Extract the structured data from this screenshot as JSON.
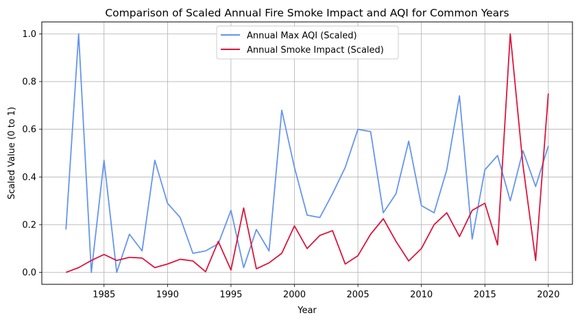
{
  "chart_data": {
    "type": "line",
    "title": "Comparison of Scaled Annual Fire Smoke Impact and AQI for Common Years",
    "xlabel": "Year",
    "ylabel": "Scaled Value (0 to 1)",
    "xlim": [
      1980.1,
      2021.9
    ],
    "ylim": [
      -0.05,
      1.05
    ],
    "xticks": [
      1985,
      1990,
      1995,
      2000,
      2005,
      2010,
      2015,
      2020
    ],
    "yticks": [
      0.0,
      0.2,
      0.4,
      0.6,
      0.8,
      1.0
    ],
    "xtick_labels": [
      "1985",
      "1990",
      "1995",
      "2000",
      "2005",
      "2010",
      "2015",
      "2020"
    ],
    "ytick_labels": [
      "0.0",
      "0.2",
      "0.4",
      "0.6",
      "0.8",
      "1.0"
    ],
    "grid": true,
    "legend_position": "top-center",
    "x": [
      1982,
      1983,
      1984,
      1985,
      1986,
      1987,
      1988,
      1989,
      1990,
      1991,
      1992,
      1993,
      1994,
      1995,
      1996,
      1997,
      1998,
      1999,
      2000,
      2001,
      2002,
      2003,
      2004,
      2005,
      2006,
      2007,
      2008,
      2009,
      2010,
      2011,
      2012,
      2013,
      2014,
      2015,
      2016,
      2017,
      2018,
      2019,
      2020
    ],
    "series": [
      {
        "name": "Annual Max AQI (Scaled)",
        "color": "#6495ED",
        "values": [
          0.18,
          1.0,
          0.0,
          0.47,
          0.0,
          0.16,
          0.09,
          0.47,
          0.29,
          0.23,
          0.08,
          0.09,
          0.12,
          0.26,
          0.02,
          0.18,
          0.09,
          0.68,
          0.44,
          0.24,
          0.23,
          0.33,
          0.44,
          0.6,
          0.59,
          0.25,
          0.33,
          0.55,
          0.28,
          0.25,
          0.43,
          0.74,
          0.14,
          0.43,
          0.49,
          0.3,
          0.51,
          0.36,
          0.53
        ]
      },
      {
        "name": "Annual Smoke Impact (Scaled)",
        "color": "#DC143C",
        "values": [
          0.0,
          0.02,
          0.05,
          0.075,
          0.05,
          0.063,
          0.06,
          0.02,
          0.035,
          0.055,
          0.048,
          0.003,
          0.13,
          0.01,
          0.27,
          0.015,
          0.04,
          0.08,
          0.195,
          0.1,
          0.155,
          0.175,
          0.035,
          0.07,
          0.16,
          0.225,
          0.13,
          0.048,
          0.1,
          0.2,
          0.25,
          0.15,
          0.26,
          0.29,
          0.115,
          1.0,
          0.45,
          0.05,
          0.75
        ]
      }
    ]
  }
}
